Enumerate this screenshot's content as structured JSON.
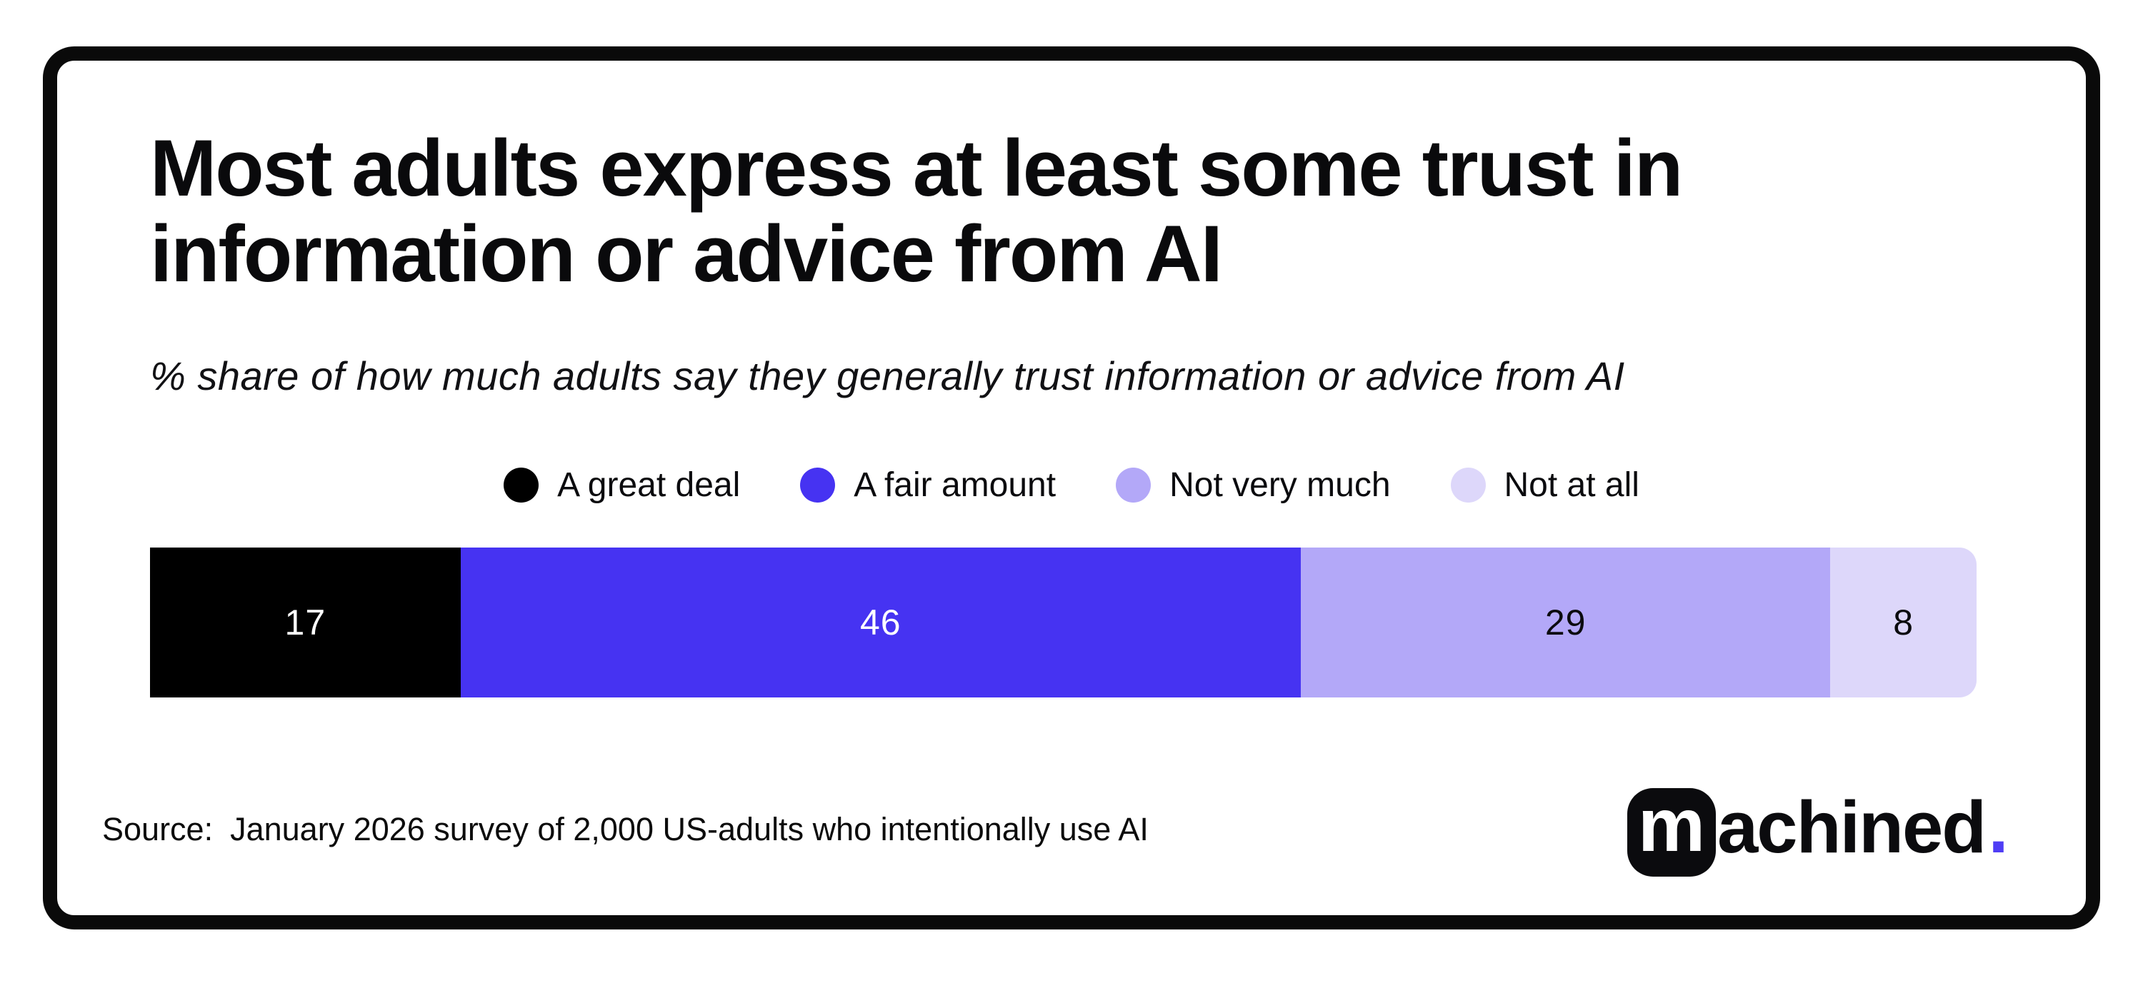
{
  "header": {
    "title": "Most adults express at least some trust in\ninformation or advice from AI",
    "subtitle": "% share of how much adults say they generally trust information or advice from AI"
  },
  "chart_data": {
    "type": "bar",
    "variant": "horizontal-stacked-100",
    "title": "Most adults express at least some trust in information or advice from AI",
    "subtitle": "% share of how much adults say they generally trust information or advice from AI",
    "unit": "%",
    "categories": [
      "A great deal",
      "A fair amount",
      "Not very much",
      "Not at all"
    ],
    "values": [
      17,
      46,
      29,
      8
    ],
    "colors": [
      "#000000",
      "#4633F2",
      "#B3A8F8",
      "#DDD7FA"
    ],
    "label_colors": [
      "#FFFFFF",
      "#FFFFFF",
      "#0B0B0E",
      "#0B0B0E"
    ],
    "legend_position": "top-center",
    "xlim": [
      0,
      100
    ],
    "grid": false
  },
  "footer": {
    "source_label": "Source:",
    "source_text": "January 2026 survey of 2,000 US-adults who intentionally use AI"
  },
  "logo": {
    "mark": "m",
    "wordmark": "achined",
    "period": ".",
    "period_color": "#4F3DF5"
  }
}
